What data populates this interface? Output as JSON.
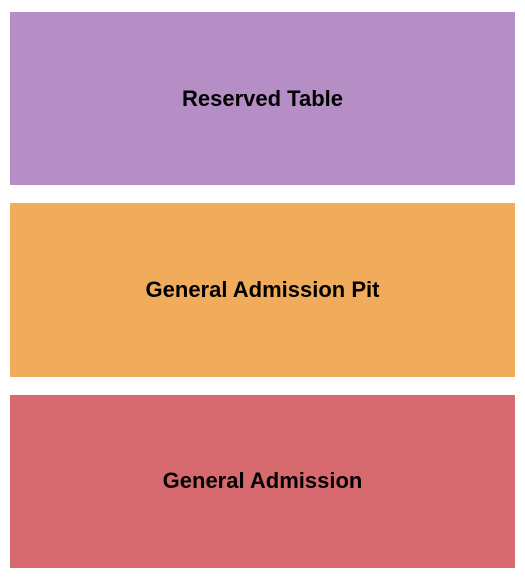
{
  "seating_chart": {
    "type": "infographic",
    "background_color": "#ffffff",
    "gap": 18,
    "padding": 12,
    "sections": [
      {
        "label": "Reserved Table",
        "background_color": "#b48ec4",
        "text_color": "#000000",
        "font_size": 22,
        "font_weight": "bold"
      },
      {
        "label": "General Admission Pit",
        "background_color": "#f0ac5a",
        "text_color": "#000000",
        "font_size": 22,
        "font_weight": "bold"
      },
      {
        "label": "General Admission",
        "background_color": "#d66a6e",
        "text_color": "#000000",
        "font_size": 22,
        "font_weight": "bold"
      }
    ]
  }
}
